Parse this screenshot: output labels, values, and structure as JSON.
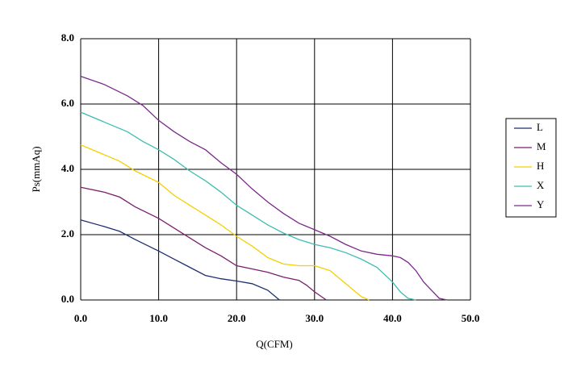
{
  "chart_data": {
    "type": "line",
    "x_label": "Q(CFM)",
    "y_label": "Ps(mmAq)",
    "xlim": [
      0,
      50
    ],
    "ylim": [
      0,
      8
    ],
    "xticks": [
      {
        "value": 0,
        "label": "0.0"
      },
      {
        "value": 10,
        "label": "10.0"
      },
      {
        "value": 20,
        "label": "20.0"
      },
      {
        "value": 30,
        "label": "30.0"
      },
      {
        "value": 40,
        "label": "40.0"
      },
      {
        "value": 50,
        "label": "50.0"
      }
    ],
    "yticks": [
      {
        "value": 0,
        "label": "0.0"
      },
      {
        "value": 2,
        "label": "2.0"
      },
      {
        "value": 4,
        "label": "4.0"
      },
      {
        "value": 6,
        "label": "6.0"
      },
      {
        "value": 8,
        "label": "8.0"
      }
    ],
    "grid": true,
    "legend": "right",
    "series": [
      {
        "name": "L",
        "color": "#1f2f6e",
        "x": [
          0,
          3,
          5,
          7,
          10,
          12,
          14,
          16,
          18,
          20,
          22,
          24,
          25.5
        ],
        "values": [
          2.45,
          2.25,
          2.1,
          1.85,
          1.5,
          1.25,
          1.0,
          0.75,
          0.65,
          0.58,
          0.5,
          0.3,
          0.0
        ]
      },
      {
        "name": "M",
        "color": "#7a1f6e",
        "x": [
          0,
          3,
          5,
          7,
          10,
          12,
          14,
          16,
          18,
          20,
          22,
          24,
          26,
          28,
          29,
          30,
          31.5
        ],
        "values": [
          3.45,
          3.3,
          3.15,
          2.85,
          2.5,
          2.2,
          1.9,
          1.6,
          1.35,
          1.05,
          0.95,
          0.85,
          0.7,
          0.6,
          0.45,
          0.25,
          0.0
        ]
      },
      {
        "name": "H",
        "color": "#f5d000",
        "x": [
          0,
          3,
          5,
          7,
          10,
          12,
          14,
          16,
          18,
          20,
          22,
          24,
          26,
          28,
          30,
          32,
          34,
          36,
          37
        ],
        "values": [
          4.75,
          4.45,
          4.25,
          3.95,
          3.6,
          3.2,
          2.9,
          2.6,
          2.3,
          1.95,
          1.65,
          1.3,
          1.1,
          1.05,
          1.05,
          0.9,
          0.5,
          0.1,
          0.0
        ]
      },
      {
        "name": "X",
        "color": "#3fbcb4",
        "x": [
          0,
          3,
          6,
          8,
          10,
          12,
          14,
          16,
          18,
          20,
          22,
          24,
          26,
          28,
          30,
          32,
          34,
          36,
          38,
          40,
          41,
          42,
          43
        ],
        "values": [
          5.75,
          5.45,
          5.15,
          4.85,
          4.6,
          4.3,
          3.95,
          3.65,
          3.3,
          2.9,
          2.6,
          2.3,
          2.05,
          1.85,
          1.7,
          1.6,
          1.45,
          1.25,
          1.0,
          0.55,
          0.25,
          0.05,
          0.0
        ]
      },
      {
        "name": "Y",
        "color": "#7a2a8a",
        "x": [
          0,
          3,
          6,
          8,
          10,
          12,
          14,
          16,
          18,
          20,
          22,
          24,
          26,
          28,
          30,
          32,
          34,
          36,
          38,
          40,
          41,
          42,
          43,
          44,
          45,
          46,
          47
        ],
        "values": [
          6.85,
          6.6,
          6.25,
          5.95,
          5.5,
          5.15,
          4.85,
          4.6,
          4.2,
          3.85,
          3.4,
          3.0,
          2.65,
          2.35,
          2.15,
          1.95,
          1.7,
          1.5,
          1.4,
          1.35,
          1.3,
          1.15,
          0.9,
          0.55,
          0.3,
          0.05,
          0.0
        ]
      }
    ]
  }
}
